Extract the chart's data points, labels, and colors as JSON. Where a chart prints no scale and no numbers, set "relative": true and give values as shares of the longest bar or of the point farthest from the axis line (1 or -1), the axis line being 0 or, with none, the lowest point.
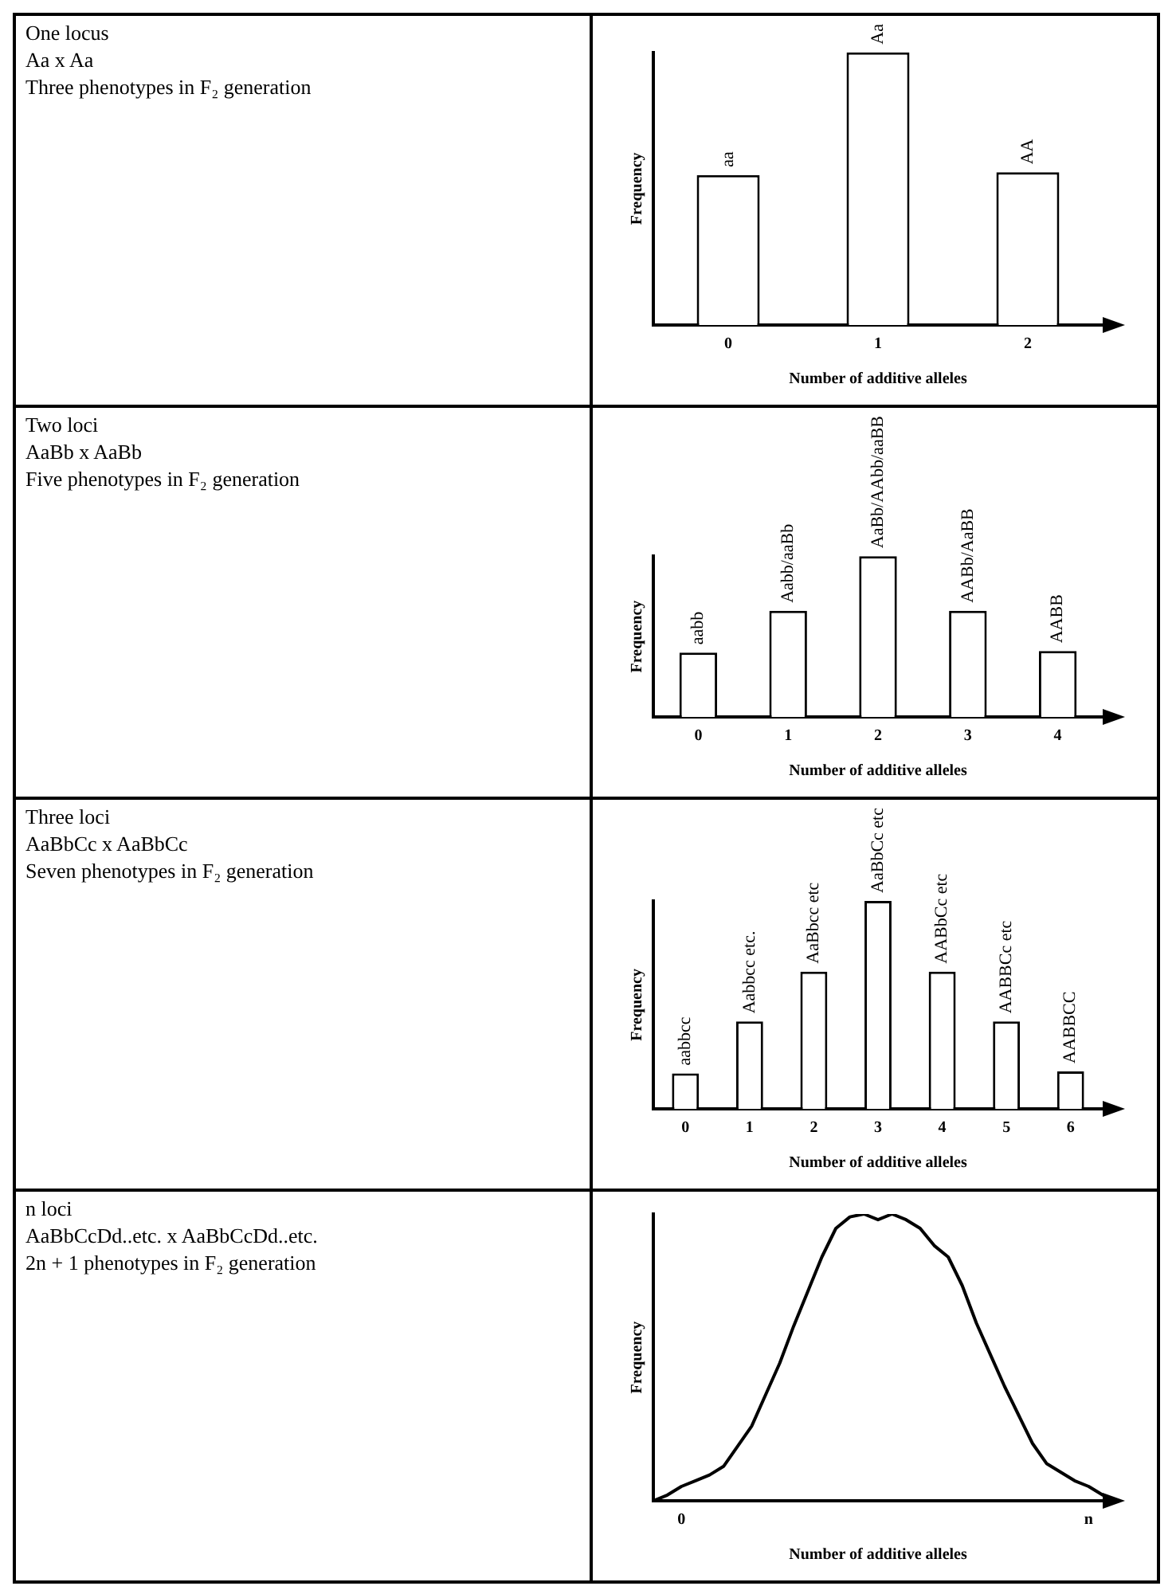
{
  "chart_data": [
    {
      "type": "bar",
      "annotations": [
        "One locus",
        "Aa x Aa",
        "Three phenotypes in F₂ generation",
        {
          "text": "aa",
          "x": "0",
          "y": 0.55
        },
        {
          "text": "Aa",
          "x": "1",
          "y": 1
        },
        {
          "text": "AA",
          "x": "2",
          "y": 0.56
        }
      ],
      "categories": [
        "0",
        "1",
        "2"
      ],
      "values": [
        0.55,
        1,
        0.56
      ],
      "color": "#ffffff",
      "relative": true,
      "xlabel": "Number of additive alleles",
      "ylabel": "Frequency"
    },
    {
      "type": "bar",
      "annotations": [
        "Two loci",
        "AaBb x AaBb",
        "Five phenotypes in F₂ generation",
        {
          "text": "aabb",
          "x": "0",
          "y": 0.4
        },
        {
          "text": "Aabb/aaBb",
          "x": "1",
          "y": 0.66
        },
        {
          "text": "AaBb/AAbb/aaBB",
          "x": "2",
          "y": 1
        },
        {
          "text": "AABb/AaBB",
          "x": "3",
          "y": 0.66
        },
        {
          "text": "AABB",
          "x": "4",
          "y": 0.41
        }
      ],
      "categories": [
        "0",
        "1",
        "2",
        "3",
        "4"
      ],
      "values": [
        0.4,
        0.66,
        1,
        0.66,
        0.41
      ],
      "color": "#ffffff",
      "relative": true,
      "xlabel": "Number of additive alleles",
      "ylabel": "Frequency"
    },
    {
      "type": "bar",
      "annotations": [
        "Three loci",
        "AaBbCc x AaBbCc",
        "Seven phenotypes in F₂ generation",
        {
          "text": "aabbcc",
          "x": "0",
          "y": 0.17
        },
        {
          "text": "Aabbcc etc.",
          "x": "1",
          "y": 0.42
        },
        {
          "text": "AaBbcc etc",
          "x": "2",
          "y": 0.66
        },
        {
          "text": "AaBbCc etc",
          "x": "3",
          "y": 1
        },
        {
          "text": "AABbCc etc",
          "x": "4",
          "y": 0.66
        },
        {
          "text": "AABBCc etc",
          "x": "5",
          "y": 0.42
        },
        {
          "text": "AABBCC",
          "x": "6",
          "y": 0.18
        }
      ],
      "categories": [
        "0",
        "1",
        "2",
        "3",
        "4",
        "5",
        "6"
      ],
      "values": [
        0.17,
        0.42,
        0.66,
        1,
        0.66,
        0.42,
        0.18
      ],
      "color": "#ffffff",
      "relative": true,
      "xlabel": "Number of additive alleles",
      "ylabel": "Frequency"
    },
    {
      "type": "line",
      "annotations": [
        "n loci",
        "AaBbCcDd..etc. x AaBbCcDd..etc.",
        "2n + 1 phenotypes in F₂ generation"
      ],
      "categories": [
        null,
        null,
        "0",
        null,
        null,
        null,
        null,
        null,
        null,
        null,
        null,
        null,
        null,
        null,
        null,
        null,
        null,
        null,
        null,
        null,
        null,
        null,
        null,
        null,
        null,
        null,
        null,
        null,
        null,
        null,
        null,
        "n",
        null
      ],
      "values": [
        0,
        0.02,
        0.05,
        0.07,
        0.09,
        0.12,
        0.19,
        0.26,
        0.37,
        0.48,
        0.61,
        0.73,
        0.85,
        0.95,
        0.99,
        1,
        0.98,
        1,
        0.98,
        0.95,
        0.89,
        0.85,
        0.75,
        0.62,
        0.51,
        0.4,
        0.3,
        0.2,
        0.13,
        0.1,
        0.07,
        0.05,
        0.02
      ],
      "color": "#000000",
      "marker": "none",
      "relative": true,
      "xlabel": "Number of additive alleles",
      "ylabel": "Frequency"
    }
  ]
}
